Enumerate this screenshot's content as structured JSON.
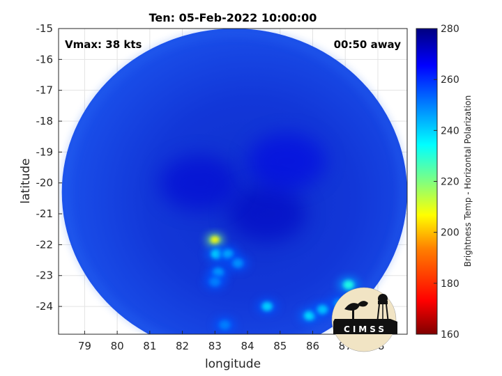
{
  "chart_data": {
    "type": "heatmap",
    "title": "Ten: 05-Feb-2022 10:00:00",
    "xlabel": "longitude",
    "ylabel": "latitude",
    "xlim": [
      78.2,
      88.9
    ],
    "ylim": [
      -24.9,
      -15
    ],
    "xticks": [
      79,
      80,
      81,
      82,
      83,
      84,
      85,
      86,
      87,
      88
    ],
    "yticks": [
      -15,
      -16,
      -17,
      -18,
      -19,
      -20,
      -21,
      -22,
      -23,
      -24
    ],
    "grid": true,
    "annotations": {
      "left": "Vmax: 38 kts",
      "right": "00:50 away"
    },
    "colorbar": {
      "label": "Brightness Temp - Horizontal Polarization",
      "range": [
        160,
        280
      ],
      "ticks": [
        160,
        180,
        200,
        220,
        240,
        260,
        280
      ],
      "colormap": [
        "#800000",
        "#ff0000",
        "#ff8000",
        "#ffff00",
        "#80ff80",
        "#00ffff",
        "#0080ff",
        "#0000ff",
        "#000080"
      ]
    },
    "swath": {
      "center_lon": 83.6,
      "center_lat": -20.3,
      "radius_lon": 5.3,
      "radius_lat": 5.3,
      "background_value": 262
    },
    "features": [
      {
        "lon": 83.0,
        "lat": -21.85,
        "value": 205
      },
      {
        "lon": 83.05,
        "lat": -22.3,
        "value": 238
      },
      {
        "lon": 83.4,
        "lat": -22.3,
        "value": 245
      },
      {
        "lon": 83.7,
        "lat": -22.6,
        "value": 248
      },
      {
        "lon": 83.1,
        "lat": -22.9,
        "value": 246
      },
      {
        "lon": 83.0,
        "lat": -23.2,
        "value": 250
      },
      {
        "lon": 84.6,
        "lat": -24.0,
        "value": 240
      },
      {
        "lon": 87.1,
        "lat": -23.3,
        "value": 232
      },
      {
        "lon": 86.8,
        "lat": -23.9,
        "value": 248
      },
      {
        "lon": 85.9,
        "lat": -24.3,
        "value": 238
      },
      {
        "lon": 86.3,
        "lat": -24.1,
        "value": 242
      },
      {
        "lon": 83.3,
        "lat": -24.6,
        "value": 250
      },
      {
        "lon": 84.6,
        "lat": -21.0,
        "value": 272
      },
      {
        "lon": 82.5,
        "lat": -20.0,
        "value": 270
      },
      {
        "lon": 85.2,
        "lat": -19.3,
        "value": 268
      }
    ]
  },
  "logo": {
    "text": "CIMSS"
  }
}
